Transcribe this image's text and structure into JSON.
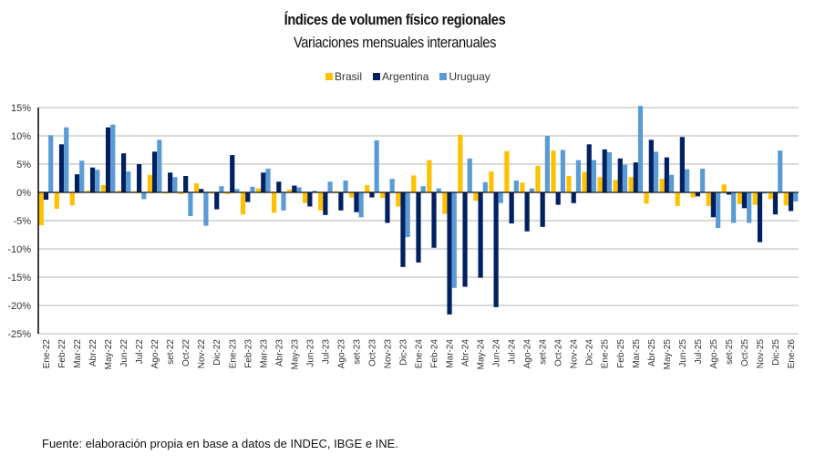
{
  "chart_data": {
    "type": "bar",
    "title": "Índices de volumen físico regionales",
    "subtitle": "Variaciones mensuales interanuales",
    "xlabel": "",
    "ylabel": "",
    "ylim": [
      -25,
      15
    ],
    "yticks": [
      15,
      10,
      5,
      0,
      -5,
      -10,
      -15,
      -20,
      -25
    ],
    "ytick_labels": [
      "15%",
      "10%",
      "5%",
      "0%",
      "-5%",
      "-10%",
      "-15%",
      "-20%",
      "-25%"
    ],
    "grid": true,
    "legend_position": "top-center",
    "categories": [
      "Ene-22",
      "Feb-22",
      "Mar-22",
      "Abr-22",
      "May-22",
      "Jun-22",
      "Jul-22",
      "Ago-22",
      "set-22",
      "Oct-22",
      "Nov-22",
      "Dic-22",
      "Ene-23",
      "Feb-23",
      "Mar-23",
      "Abr-23",
      "May-23",
      "Jun-23",
      "Jul-23",
      "Ago-23",
      "set-23",
      "Oct-23",
      "Nov-23",
      "Dic-23",
      "Ene-24",
      "Feb-24",
      "Mar-24",
      "Abr-24",
      "May-24",
      "Jun-24",
      "Jul-24",
      "Ago-24",
      "set-24",
      "Oct-24",
      "Nov-24",
      "Dic-24",
      "Ene-25",
      "Feb-25",
      "Mar-25",
      "Abr-25",
      "May-25",
      "Jun-25",
      "Jul-25",
      "Ago-25",
      "set-25",
      "Oct-25",
      "Nov-25",
      "Dic-25",
      "Ene-26"
    ],
    "series": [
      {
        "name": "Brasil",
        "color": "#FFC000",
        "values": [
          -5.8,
          -2.9,
          -2.3,
          0.3,
          1.3,
          0.3,
          0.2,
          3.1,
          -0.2,
          -0.3,
          1.6,
          -0.2,
          -0.3,
          -3.9,
          0.7,
          -3.6,
          0.5,
          -1.9,
          -3.2,
          0.2,
          -0.9,
          1.3,
          -1.0,
          -2.5,
          3.0,
          5.7,
          -3.8,
          10.2,
          -1.5,
          3.7,
          7.3,
          1.7,
          4.7,
          7.4,
          2.9,
          3.6,
          2.7,
          2.2,
          2.7,
          -2.0,
          2.4,
          -2.4,
          -0.9,
          -2.4,
          1.4,
          -2.1,
          -2.2,
          -1.2,
          -2.3
        ]
      },
      {
        "name": "Argentina",
        "color": "#002060",
        "values": [
          -1.3,
          8.5,
          3.2,
          4.4,
          11.5,
          6.9,
          5.0,
          7.2,
          3.5,
          2.9,
          0.6,
          -3.0,
          6.6,
          -1.7,
          3.5,
          1.9,
          1.2,
          -2.5,
          -4.0,
          -3.2,
          -3.5,
          -0.9,
          -5.4,
          -13.2,
          -12.4,
          -9.8,
          -21.6,
          -16.7,
          -15.1,
          -20.3,
          -5.5,
          -6.9,
          -6.1,
          -2.2,
          -1.9,
          8.5,
          7.6,
          6.0,
          5.3,
          9.3,
          6.2,
          9.8,
          -0.7,
          -4.4,
          -0.4,
          -2.8,
          -8.8,
          -3.9,
          -3.3
        ]
      },
      {
        "name": "Uruguay",
        "color": "#5B9BD5",
        "values": [
          10.1,
          11.5,
          5.6,
          4.0,
          12.0,
          3.7,
          -1.2,
          9.3,
          2.7,
          -4.2,
          -5.9,
          1.1,
          0.6,
          1.0,
          4.2,
          -3.2,
          0.9,
          0.3,
          1.9,
          2.1,
          -4.4,
          9.2,
          2.4,
          -7.9,
          1.1,
          0.7,
          -16.9,
          6.0,
          1.8,
          -1.9,
          2.1,
          0.7,
          10.0,
          7.5,
          5.7,
          5.7,
          7.1,
          4.9,
          15.3,
          7.2,
          3.1,
          4.1,
          4.2,
          -6.3,
          -5.4,
          -5.4,
          -0.2,
          7.4,
          -1.6
        ]
      }
    ]
  },
  "footer": {
    "source": "Fuente: elaboración propia en base a datos de INDEC, IBGE e INE."
  }
}
